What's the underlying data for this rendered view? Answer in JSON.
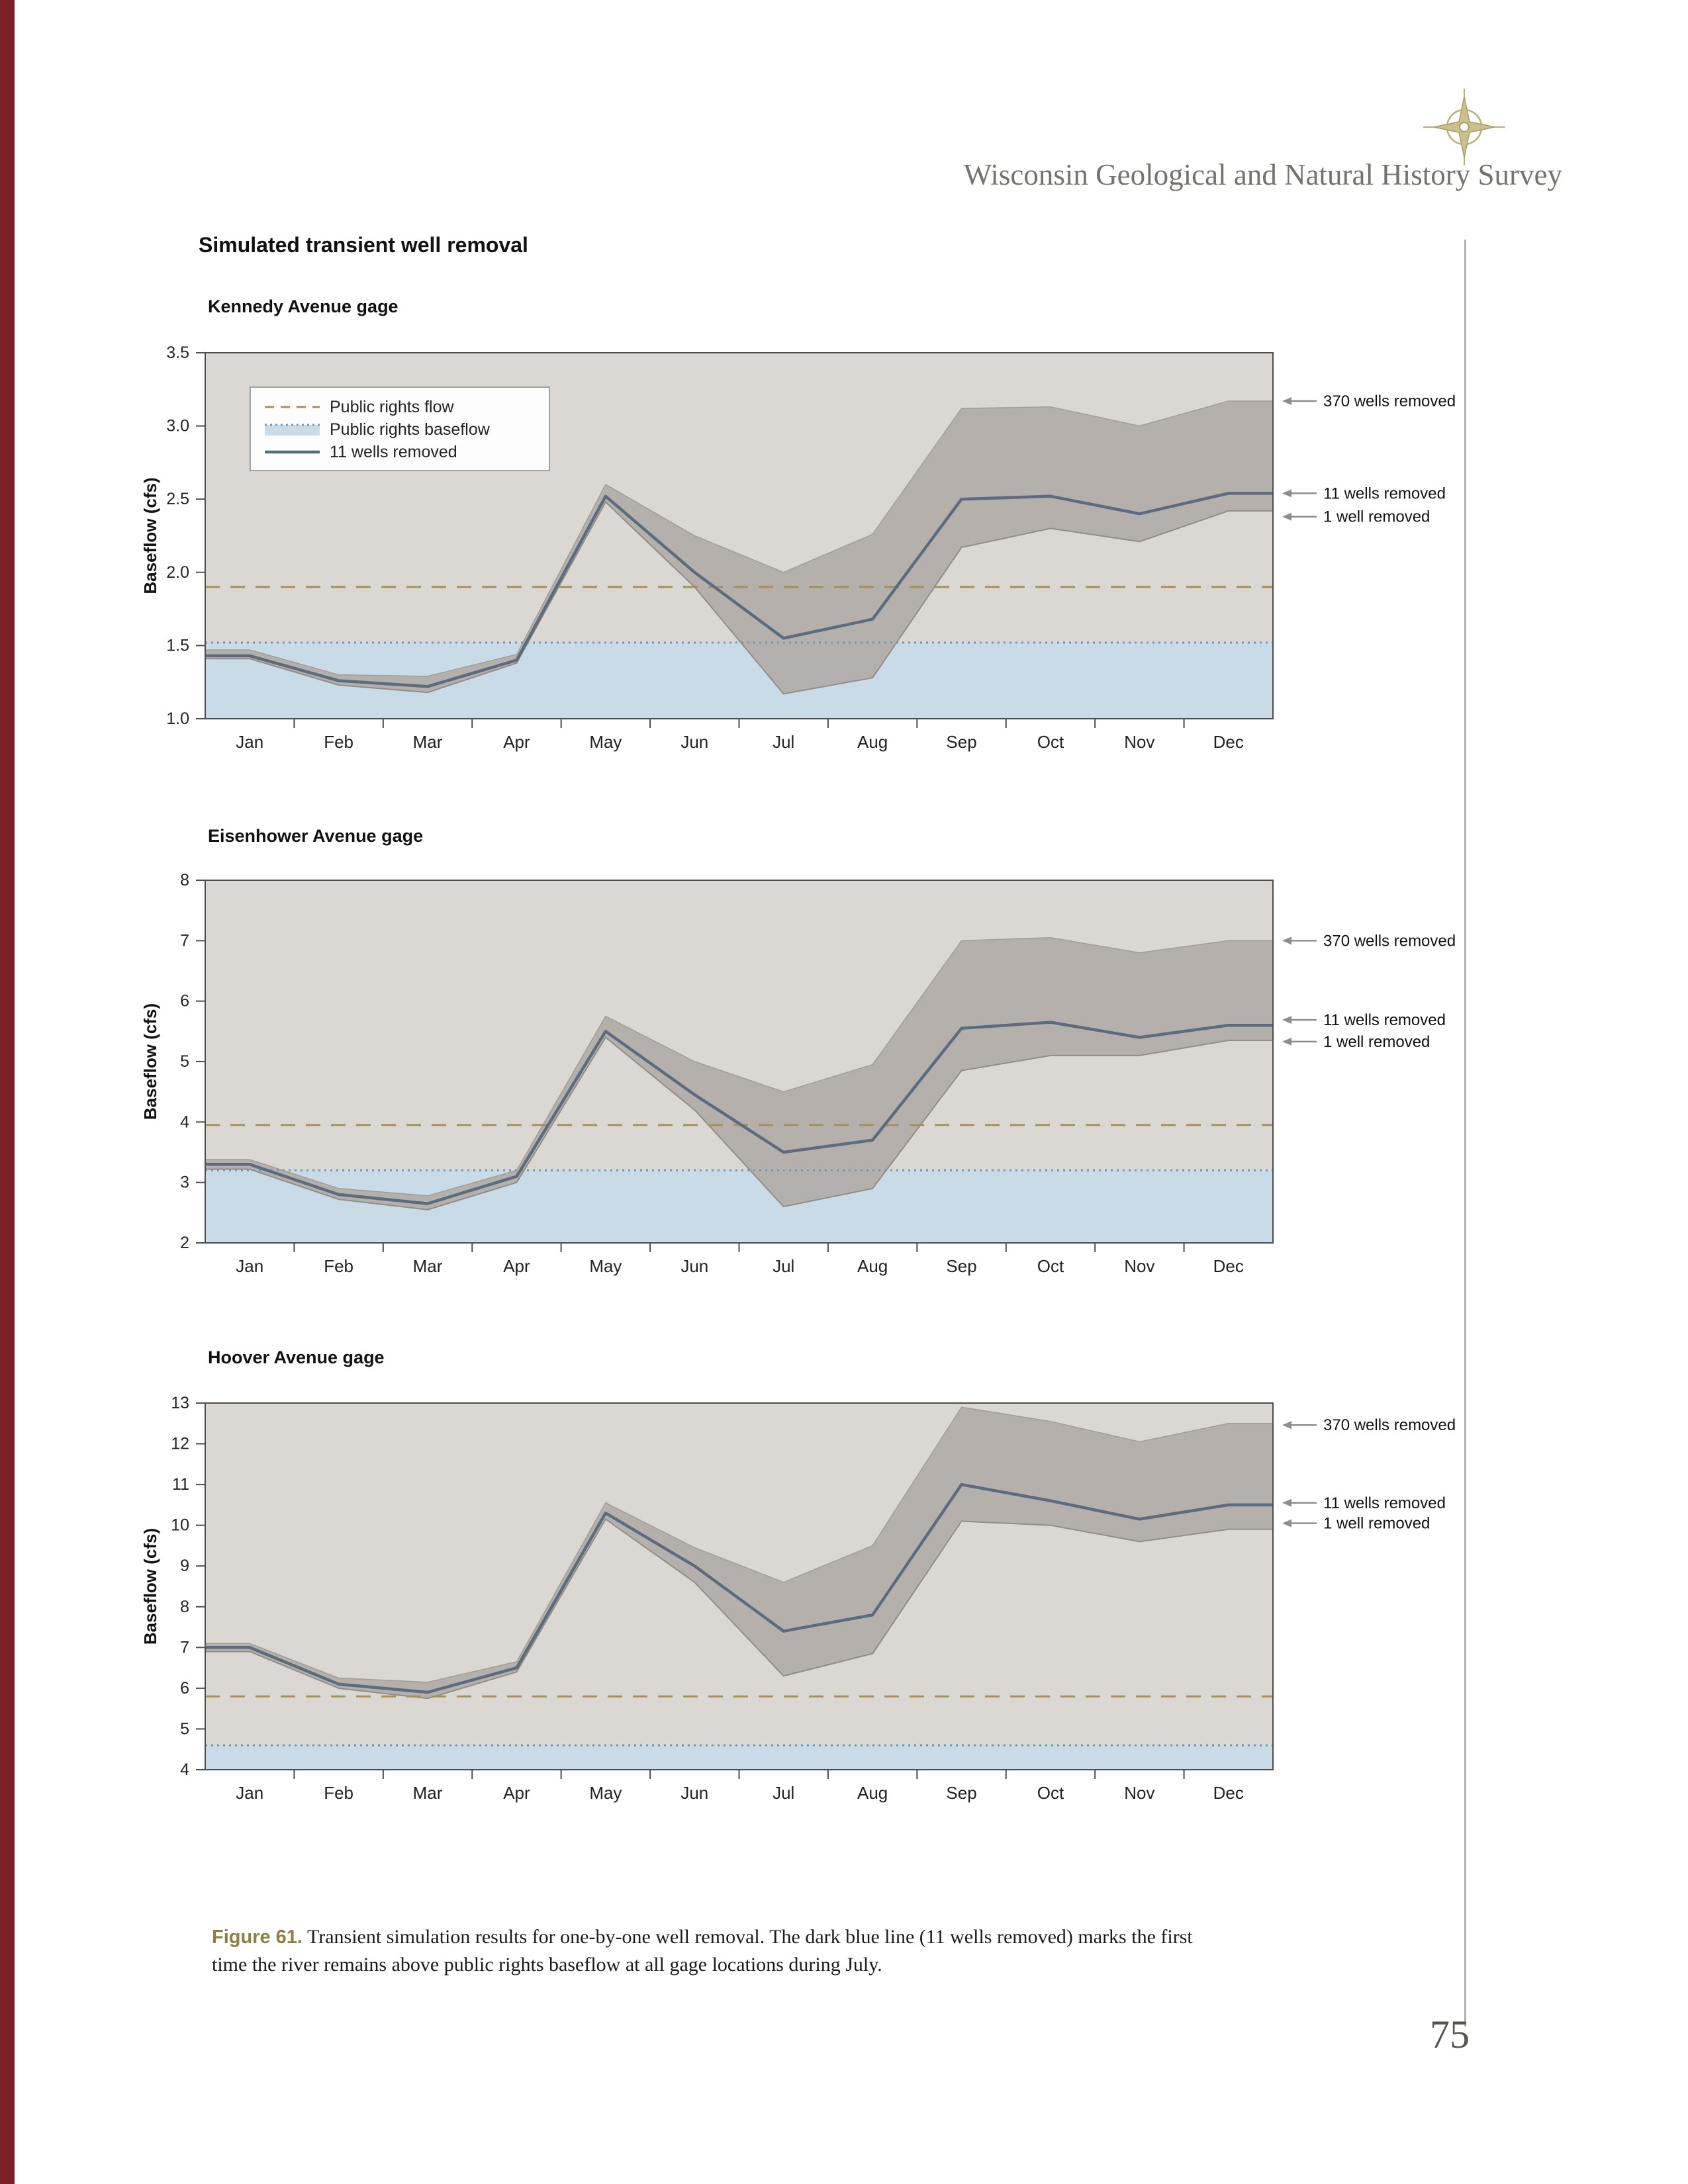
{
  "page": {
    "header": "Wisconsin Geological and Natural History Survey",
    "section_title": "Simulated transient well removal",
    "caption_label": "Figure 61.",
    "caption_text": "Transient simulation results for one-by-one well removal. The dark blue line (11 wells removed) marks the first time the river remains above public rights baseflow at all gage locations during July.",
    "page_number": "75"
  },
  "colors": {
    "accent_stripe": "#7d2027",
    "plot_bg": "#dbd7d2",
    "baseflow_fill": "#c8dbe6",
    "band_fill": "#b2ada8",
    "band_edge": "#938d88",
    "line_11_wells": "#5b6c7e",
    "public_rights_flow_dash": "#a3905e",
    "public_rights_baseflow_dot": "#6d99b1",
    "axis": "#4d4d4d",
    "arrow": "#8d8d8d"
  },
  "chart_data": [
    {
      "type": "line",
      "title": "Kennedy Avenue gage",
      "ylabel": "Baseflow (cfs)",
      "ylim": [
        1.0,
        3.5
      ],
      "yticks": [
        "1.0",
        "1.5",
        "2.0",
        "2.5",
        "3.0",
        "3.5"
      ],
      "categories": [
        "Jan",
        "Feb",
        "Mar",
        "Apr",
        "May",
        "Jun",
        "Jul",
        "Aug",
        "Sep",
        "Oct",
        "Nov",
        "Dec"
      ],
      "series": [
        {
          "name": "370 wells removed (band upper)",
          "values": [
            1.47,
            1.3,
            1.29,
            1.44,
            2.6,
            2.25,
            2.0,
            2.26,
            3.12,
            3.13,
            3.0,
            3.17
          ]
        },
        {
          "name": "1 well removed (band lower)",
          "values": [
            1.41,
            1.23,
            1.18,
            1.38,
            2.48,
            1.9,
            1.17,
            1.28,
            2.17,
            2.3,
            2.21,
            2.42
          ]
        },
        {
          "name": "11 wells removed",
          "values": [
            1.43,
            1.26,
            1.22,
            1.4,
            2.52,
            2.0,
            1.55,
            1.68,
            2.5,
            2.52,
            2.4,
            2.54
          ]
        }
      ],
      "reference_lines": [
        {
          "name": "Public rights flow",
          "value": 1.9,
          "style": "dashed"
        },
        {
          "name": "Public rights baseflow",
          "value": 1.52,
          "style": "dotted-fill"
        }
      ],
      "annotations": [
        {
          "label": "370 wells removed",
          "y": 3.17
        },
        {
          "label": "11 wells removed",
          "y": 2.54
        },
        {
          "label": "1 well removed",
          "y": 2.38
        }
      ],
      "legend": [
        {
          "label": "Public rights flow",
          "swatch": "dashed"
        },
        {
          "label": "Public rights baseflow",
          "swatch": "baseflow"
        },
        {
          "label": "11 wells removed",
          "swatch": "line"
        }
      ]
    },
    {
      "type": "line",
      "title": "Eisenhower Avenue gage",
      "ylabel": "Baseflow (cfs)",
      "ylim": [
        2,
        8
      ],
      "yticks": [
        "2",
        "3",
        "4",
        "5",
        "6",
        "7",
        "8"
      ],
      "categories": [
        "Jan",
        "Feb",
        "Mar",
        "Apr",
        "May",
        "Jun",
        "Jul",
        "Aug",
        "Sep",
        "Oct",
        "Nov",
        "Dec"
      ],
      "series": [
        {
          "name": "370 wells removed (band upper)",
          "values": [
            3.38,
            2.9,
            2.78,
            3.2,
            5.75,
            5.0,
            4.5,
            4.95,
            7.0,
            7.05,
            6.8,
            7.0
          ]
        },
        {
          "name": "1 well removed (band lower)",
          "values": [
            3.22,
            2.72,
            2.55,
            3.0,
            5.4,
            4.2,
            2.6,
            2.9,
            4.85,
            5.1,
            5.1,
            5.35
          ]
        },
        {
          "name": "11 wells removed",
          "values": [
            3.3,
            2.8,
            2.65,
            3.1,
            5.5,
            4.45,
            3.5,
            3.7,
            5.55,
            5.65,
            5.4,
            5.6
          ]
        }
      ],
      "reference_lines": [
        {
          "name": "Public rights flow",
          "value": 3.95,
          "style": "dashed"
        },
        {
          "name": "Public rights baseflow",
          "value": 3.2,
          "style": "dotted-fill"
        }
      ],
      "annotations": [
        {
          "label": "370 wells removed",
          "y": 7.0
        },
        {
          "label": "11 wells removed",
          "y": 5.69
        },
        {
          "label": "1 well removed",
          "y": 5.33
        }
      ]
    },
    {
      "type": "line",
      "title": "Hoover Avenue gage",
      "ylabel": "Baseflow (cfs)",
      "ylim": [
        4,
        13
      ],
      "yticks": [
        "4",
        "5",
        "6",
        "7",
        "8",
        "9",
        "10",
        "11",
        "12",
        "13"
      ],
      "categories": [
        "Jan",
        "Feb",
        "Mar",
        "Apr",
        "May",
        "Jun",
        "Jul",
        "Aug",
        "Sep",
        "Oct",
        "Nov",
        "Dec"
      ],
      "series": [
        {
          "name": "370 wells removed (band upper)",
          "values": [
            7.1,
            6.25,
            6.15,
            6.65,
            10.55,
            9.45,
            8.6,
            9.5,
            12.9,
            12.55,
            12.05,
            12.5
          ]
        },
        {
          "name": "1 well removed (band lower)",
          "values": [
            6.9,
            6.0,
            5.75,
            6.4,
            10.15,
            8.6,
            6.3,
            6.85,
            10.1,
            10.0,
            9.6,
            9.9
          ]
        },
        {
          "name": "11 wells removed",
          "values": [
            7.0,
            6.1,
            5.9,
            6.5,
            10.3,
            9.0,
            7.4,
            7.8,
            11.0,
            10.6,
            10.15,
            10.5
          ]
        }
      ],
      "reference_lines": [
        {
          "name": "Public rights flow",
          "value": 5.8,
          "style": "dashed"
        },
        {
          "name": "Public rights baseflow",
          "value": 4.6,
          "style": "dotted-fill"
        }
      ],
      "annotations": [
        {
          "label": "370 wells removed",
          "y": 12.46
        },
        {
          "label": "11 wells removed",
          "y": 10.55
        },
        {
          "label": "1 well removed",
          "y": 10.05
        }
      ]
    }
  ]
}
